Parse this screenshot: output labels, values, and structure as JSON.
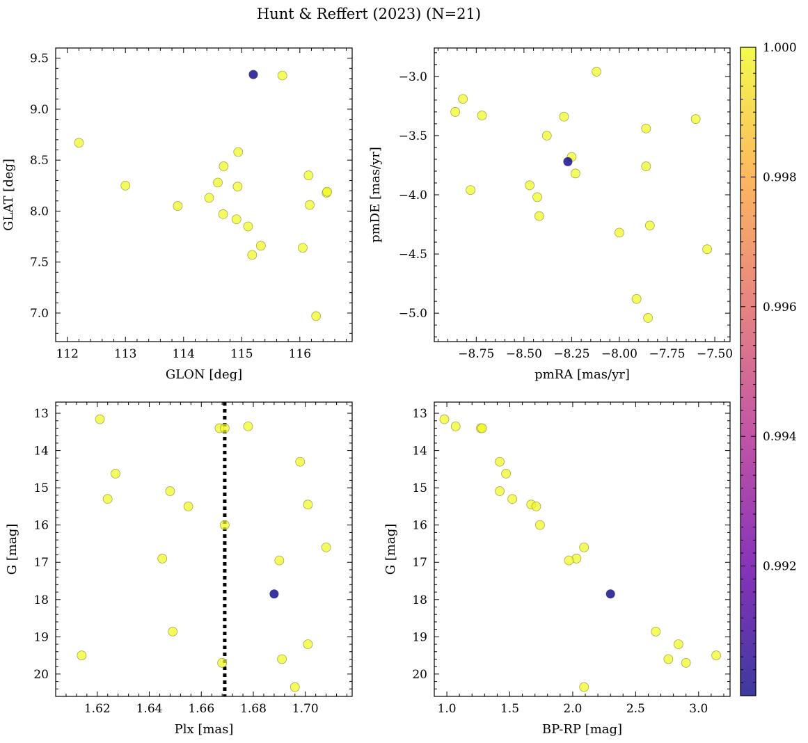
{
  "figure": {
    "title": "Hunt & Reffert (2023) (N=21)"
  },
  "colorbar": {
    "min": 0.99,
    "max": 1.0,
    "ticks": [
      0.992,
      0.994,
      0.996,
      0.998,
      1.0
    ],
    "tick_labels": [
      "0.992",
      "0.994",
      "0.996",
      "0.998",
      "1.000"
    ],
    "colormap": "plasma",
    "colors": [
      "#0d0887",
      "#6a00a8",
      "#b12a90",
      "#e16462",
      "#fca636",
      "#f0f921"
    ]
  },
  "chart_data": [
    {
      "type": "scatter",
      "id": "glon-glat",
      "xlabel": "GLON [deg]",
      "ylabel": "GLAT [deg]",
      "xlim": [
        111.8,
        116.9
      ],
      "ylim": [
        6.72,
        9.6
      ],
      "y_inverted": false,
      "xticks": [
        112,
        113,
        114,
        115,
        116
      ],
      "xtick_labels": [
        "112",
        "113",
        "114",
        "115",
        "116"
      ],
      "yticks": [
        7.0,
        7.5,
        8.0,
        8.5,
        9.0,
        9.5
      ],
      "ytick_labels": [
        "7.0",
        "7.5",
        "8.0",
        "8.5",
        "9.0",
        "9.5"
      ],
      "points": [
        {
          "x": 112.2,
          "y": 8.67,
          "prob": 1.0
        },
        {
          "x": 113.0,
          "y": 8.25,
          "prob": 1.0
        },
        {
          "x": 113.9,
          "y": 8.05,
          "prob": 1.0
        },
        {
          "x": 114.44,
          "y": 8.13,
          "prob": 1.0
        },
        {
          "x": 114.59,
          "y": 8.28,
          "prob": 1.0
        },
        {
          "x": 114.69,
          "y": 8.44,
          "prob": 1.0
        },
        {
          "x": 114.68,
          "y": 7.97,
          "prob": 1.0
        },
        {
          "x": 114.91,
          "y": 7.92,
          "prob": 1.0
        },
        {
          "x": 114.93,
          "y": 8.24,
          "prob": 1.0
        },
        {
          "x": 114.94,
          "y": 8.58,
          "prob": 1.0
        },
        {
          "x": 115.11,
          "y": 7.85,
          "prob": 1.0
        },
        {
          "x": 115.18,
          "y": 7.57,
          "prob": 1.0
        },
        {
          "x": 115.33,
          "y": 7.66,
          "prob": 1.0
        },
        {
          "x": 115.7,
          "y": 9.33,
          "prob": 1.0
        },
        {
          "x": 116.05,
          "y": 7.64,
          "prob": 1.0
        },
        {
          "x": 116.15,
          "y": 8.35,
          "prob": 1.0
        },
        {
          "x": 116.17,
          "y": 8.06,
          "prob": 1.0
        },
        {
          "x": 116.28,
          "y": 6.97,
          "prob": 1.0
        },
        {
          "x": 116.46,
          "y": 8.18,
          "prob": 1.0
        },
        {
          "x": 116.47,
          "y": 8.19,
          "prob": 1.0
        },
        {
          "x": 115.2,
          "y": 9.34,
          "prob": 0.99
        }
      ]
    },
    {
      "type": "scatter",
      "id": "pmra-pmde",
      "xlabel": "pmRA [mas/yr]",
      "ylabel": "pmDE [mas/yr]",
      "xlim": [
        -8.97,
        -7.42
      ],
      "ylim": [
        -5.24,
        -2.76
      ],
      "y_inverted": false,
      "xticks": [
        -8.75,
        -8.5,
        -8.25,
        -8.0,
        -7.75,
        -7.5
      ],
      "xtick_labels": [
        "−8.75",
        "−8.50",
        "−8.25",
        "−8.00",
        "−7.75",
        "−7.50"
      ],
      "yticks": [
        -5.0,
        -4.5,
        -4.0,
        -3.5,
        -3.0
      ],
      "ytick_labels": [
        "−5.0",
        "−4.5",
        "−4.0",
        "−3.5",
        "−3.0"
      ],
      "points": [
        {
          "x": -8.86,
          "y": -3.3,
          "prob": 1.0
        },
        {
          "x": -8.82,
          "y": -3.19,
          "prob": 1.0
        },
        {
          "x": -8.78,
          "y": -3.96,
          "prob": 1.0
        },
        {
          "x": -8.72,
          "y": -3.33,
          "prob": 1.0
        },
        {
          "x": -8.47,
          "y": -3.92,
          "prob": 1.0
        },
        {
          "x": -8.43,
          "y": -4.02,
          "prob": 1.0
        },
        {
          "x": -8.42,
          "y": -4.18,
          "prob": 1.0
        },
        {
          "x": -8.38,
          "y": -3.5,
          "prob": 1.0
        },
        {
          "x": -8.29,
          "y": -3.34,
          "prob": 1.0
        },
        {
          "x": -8.25,
          "y": -3.68,
          "prob": 1.0
        },
        {
          "x": -8.23,
          "y": -3.82,
          "prob": 1.0
        },
        {
          "x": -8.12,
          "y": -2.96,
          "prob": 1.0
        },
        {
          "x": -8.0,
          "y": -4.32,
          "prob": 1.0
        },
        {
          "x": -7.91,
          "y": -4.88,
          "prob": 1.0
        },
        {
          "x": -7.86,
          "y": -3.44,
          "prob": 1.0
        },
        {
          "x": -7.86,
          "y": -3.76,
          "prob": 1.0
        },
        {
          "x": -7.85,
          "y": -5.04,
          "prob": 1.0
        },
        {
          "x": -7.84,
          "y": -4.26,
          "prob": 1.0
        },
        {
          "x": -7.6,
          "y": -3.36,
          "prob": 1.0
        },
        {
          "x": -7.54,
          "y": -4.46,
          "prob": 1.0
        },
        {
          "x": -8.27,
          "y": -3.72,
          "prob": 0.99
        }
      ]
    },
    {
      "type": "scatter",
      "id": "plx-g",
      "xlabel": "Plx [mas]",
      "ylabel": "G [mag]",
      "xlim": [
        1.604,
        1.718
      ],
      "ylim": [
        20.6,
        12.7
      ],
      "y_inverted": true,
      "vline": {
        "x": 1.669,
        "style": "dotted"
      },
      "xticks": [
        1.62,
        1.64,
        1.66,
        1.68,
        1.7
      ],
      "xtick_labels": [
        "1.62",
        "1.64",
        "1.66",
        "1.68",
        "1.70"
      ],
      "yticks": [
        13,
        14,
        15,
        16,
        17,
        18,
        19,
        20
      ],
      "ytick_labels": [
        "13",
        "14",
        "15",
        "16",
        "17",
        "18",
        "19",
        "20"
      ],
      "points": [
        {
          "x": 1.614,
          "y": 19.5,
          "prob": 1.0
        },
        {
          "x": 1.621,
          "y": 13.16,
          "prob": 1.0
        },
        {
          "x": 1.624,
          "y": 15.3,
          "prob": 1.0
        },
        {
          "x": 1.627,
          "y": 14.62,
          "prob": 1.0
        },
        {
          "x": 1.645,
          "y": 16.9,
          "prob": 1.0
        },
        {
          "x": 1.648,
          "y": 15.09,
          "prob": 1.0
        },
        {
          "x": 1.649,
          "y": 18.86,
          "prob": 1.0
        },
        {
          "x": 1.655,
          "y": 15.5,
          "prob": 1.0
        },
        {
          "x": 1.667,
          "y": 13.4,
          "prob": 1.0
        },
        {
          "x": 1.668,
          "y": 19.7,
          "prob": 1.0
        },
        {
          "x": 1.669,
          "y": 16.0,
          "prob": 1.0
        },
        {
          "x": 1.669,
          "y": 13.4,
          "prob": 1.0
        },
        {
          "x": 1.678,
          "y": 13.35,
          "prob": 1.0
        },
        {
          "x": 1.69,
          "y": 16.95,
          "prob": 1.0
        },
        {
          "x": 1.691,
          "y": 19.6,
          "prob": 1.0
        },
        {
          "x": 1.696,
          "y": 20.35,
          "prob": 1.0
        },
        {
          "x": 1.698,
          "y": 14.3,
          "prob": 1.0
        },
        {
          "x": 1.701,
          "y": 15.45,
          "prob": 1.0
        },
        {
          "x": 1.701,
          "y": 19.2,
          "prob": 1.0
        },
        {
          "x": 1.708,
          "y": 16.6,
          "prob": 1.0
        },
        {
          "x": 1.688,
          "y": 17.85,
          "prob": 0.99
        }
      ]
    },
    {
      "type": "scatter",
      "id": "bprp-g",
      "xlabel": "BP-RP [mag]",
      "ylabel": "G [mag]",
      "xlim": [
        0.9,
        3.25
      ],
      "ylim": [
        20.6,
        12.7
      ],
      "y_inverted": true,
      "xticks": [
        1.0,
        1.5,
        2.0,
        2.5,
        3.0
      ],
      "xtick_labels": [
        "1.0",
        "1.5",
        "2.0",
        "2.5",
        "3.0"
      ],
      "yticks": [
        13,
        14,
        15,
        16,
        17,
        18,
        19,
        20
      ],
      "ytick_labels": [
        "13",
        "14",
        "15",
        "16",
        "17",
        "18",
        "19",
        "20"
      ],
      "points": [
        {
          "x": 0.98,
          "y": 13.16,
          "prob": 1.0
        },
        {
          "x": 1.07,
          "y": 13.35,
          "prob": 1.0
        },
        {
          "x": 1.27,
          "y": 13.4,
          "prob": 1.0
        },
        {
          "x": 1.28,
          "y": 13.4,
          "prob": 1.0
        },
        {
          "x": 1.42,
          "y": 14.3,
          "prob": 1.0
        },
        {
          "x": 1.47,
          "y": 14.62,
          "prob": 1.0
        },
        {
          "x": 1.42,
          "y": 15.09,
          "prob": 1.0
        },
        {
          "x": 1.52,
          "y": 15.3,
          "prob": 1.0
        },
        {
          "x": 1.67,
          "y": 15.45,
          "prob": 1.0
        },
        {
          "x": 1.71,
          "y": 15.5,
          "prob": 1.0
        },
        {
          "x": 1.74,
          "y": 16.0,
          "prob": 1.0
        },
        {
          "x": 2.09,
          "y": 16.6,
          "prob": 1.0
        },
        {
          "x": 2.03,
          "y": 16.9,
          "prob": 1.0
        },
        {
          "x": 1.97,
          "y": 16.95,
          "prob": 1.0
        },
        {
          "x": 2.66,
          "y": 18.86,
          "prob": 1.0
        },
        {
          "x": 2.84,
          "y": 19.2,
          "prob": 1.0
        },
        {
          "x": 3.14,
          "y": 19.5,
          "prob": 1.0
        },
        {
          "x": 2.76,
          "y": 19.6,
          "prob": 1.0
        },
        {
          "x": 2.9,
          "y": 19.7,
          "prob": 1.0
        },
        {
          "x": 2.09,
          "y": 20.35,
          "prob": 1.0
        },
        {
          "x": 2.3,
          "y": 17.85,
          "prob": 0.99
        }
      ]
    }
  ]
}
